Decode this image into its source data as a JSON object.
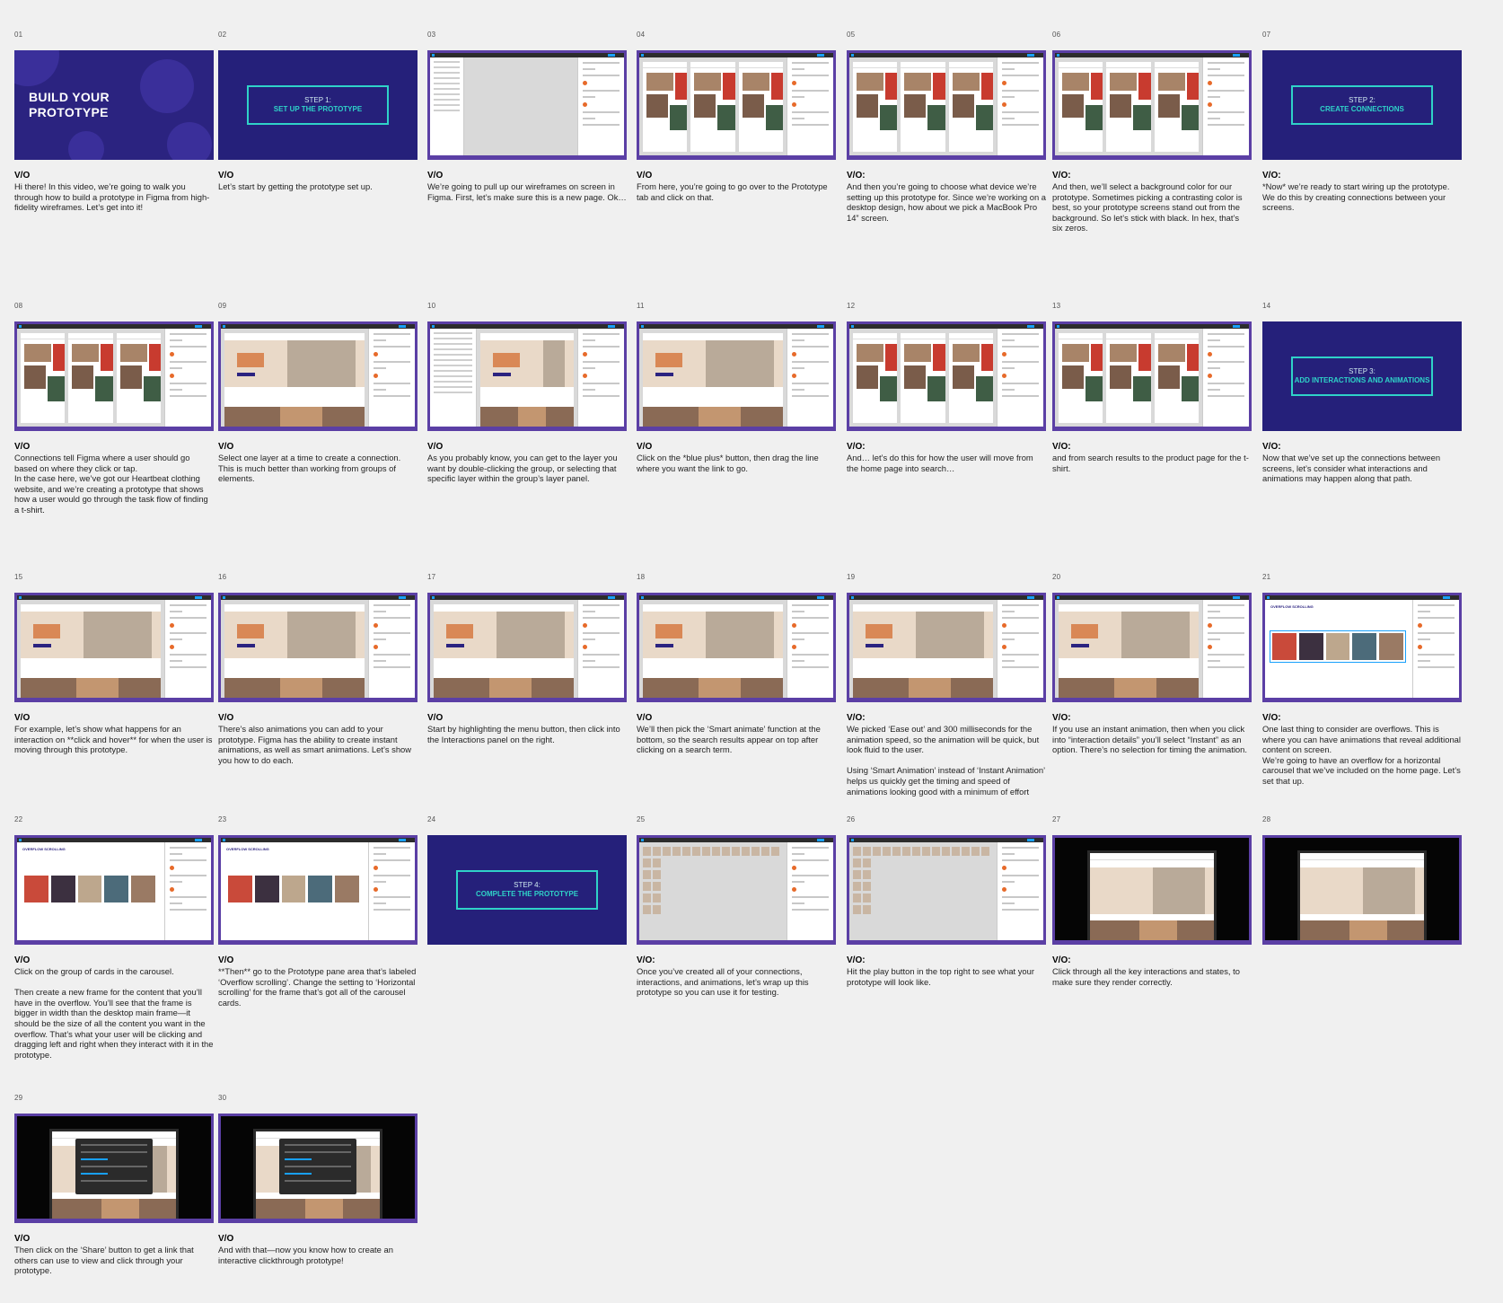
{
  "slides": [
    {
      "num": "01",
      "kind": "title",
      "title_l1": "BUILD YOUR",
      "title_l2": "PROTOTYPE",
      "label": "V/O",
      "desc": "Hi there! In this video, we’re going to walk you through how to build a prototype in Figma from high-fidelity wireframes. Let’s get into it!"
    },
    {
      "num": "02",
      "kind": "step",
      "step_l1": "STEP 1:",
      "step_l2": "SET UP THE PROTOTYPE",
      "label": "V/O",
      "desc": "Let’s start by getting the prototype set up."
    },
    {
      "num": "03",
      "kind": "ui-blank",
      "label": "V/O",
      "desc": "We’re going to pull up our wireframes on screen in Figma. First, let’s make sure this is a new page. Ok…"
    },
    {
      "num": "04",
      "kind": "ui-frames",
      "label": "V/O",
      "desc": "From here, you’re going to go over to the Prototype tab and click on that."
    },
    {
      "num": "05",
      "kind": "ui-frames",
      "label": "V/O:",
      "desc": "And then you’re going to choose what device we’re setting up this prototype for. Since we’re working on a desktop design, how about we pick a MacBook Pro 14” screen."
    },
    {
      "num": "06",
      "kind": "ui-frames",
      "label": "V/O:",
      "desc": "And then, we’ll select a background color for our prototype. Sometimes picking a contrasting color is best, so your prototype screens stand out from the background. So let’s stick with black. In hex, that’s six zeros."
    },
    {
      "num": "07",
      "kind": "step",
      "step_l1": "STEP 2:",
      "step_l2": "CREATE CONNECTIONS",
      "label": "V/O:",
      "desc": "*Now* we’re ready to start wiring up the prototype. We do this by creating connections between your screens."
    },
    {
      "num": "08",
      "kind": "ui-frames",
      "label": "V/O",
      "desc": "Connections tell Figma where a user should go based on where they click or tap.\nIn the case here, we’ve got our Heartbeat clothing website, and we’re creating a prototype that shows how a user would go through the task flow of finding a t-shirt."
    },
    {
      "num": "09",
      "kind": "ui-site",
      "label": "V/O",
      "desc": "Select one layer at a time to create a connection. This is much better than working from groups of elements."
    },
    {
      "num": "10",
      "kind": "ui-site-layers",
      "label": "V/O",
      "desc": "As you probably know, you can get to the layer you want by double-clicking the group, or selecting that specific layer within the group’s layer panel."
    },
    {
      "num": "11",
      "kind": "ui-site",
      "label": "V/O",
      "desc": "Click on the *blue plus* button, then drag the line where you want the link to go."
    },
    {
      "num": "12",
      "kind": "ui-frames",
      "label": "V/O:",
      "desc": "And… let’s do this for how the user will move from the home page into search…"
    },
    {
      "num": "13",
      "kind": "ui-frames",
      "label": "V/O:",
      "desc": "and from search results to the product page for the t-shirt."
    },
    {
      "num": "14",
      "kind": "step",
      "step_l1": "STEP 3:",
      "step_l2": "ADD INTERACTIONS AND ANIMATIONS",
      "label": "V/O:",
      "desc": "Now that we’ve set up the connections between screens, let’s consider what interactions and animations may happen along that path."
    },
    {
      "num": "15",
      "kind": "ui-site",
      "label": "V/O",
      "desc": "For example, let’s show what happens for an interaction on **click and hover** for when the user is moving through this prototype."
    },
    {
      "num": "16",
      "kind": "ui-site",
      "label": "V/O",
      "desc": "There’s also animations you can add to your prototype. Figma has the ability to create instant animations, as well as smart animations. Let’s show you how to do each."
    },
    {
      "num": "17",
      "kind": "ui-site",
      "label": "V/O",
      "desc": "Start by highlighting the menu button, then click into the Interactions panel on the right."
    },
    {
      "num": "18",
      "kind": "ui-site",
      "label": "V/O",
      "desc": "We’ll then pick the ‘Smart animate’ function at the bottom, so the search results appear on top after clicking on a search term."
    },
    {
      "num": "19",
      "kind": "ui-site",
      "label": "V/O:",
      "desc": "We picked ‘Ease out’ and 300 milliseconds for the animation speed, so the animation will be quick, but look fluid to the user.\n\nUsing ‘Smart Animation’ instead of ‘Instant Animation’ helps us quickly get the timing and speed of animations looking good with a minimum of effort"
    },
    {
      "num": "20",
      "kind": "ui-site",
      "label": "V/O:",
      "desc": "If you use an instant animation, then when you click into “interaction details” you’ll select “Instant” as an option. There’s no selection for timing the animation."
    },
    {
      "num": "21",
      "kind": "ui-carousel",
      "heading": "OVERFLOW SCROLLING",
      "label": "V/O:",
      "desc": "One last thing to consider are overflows. This is where you can have animations that reveal additional content on screen.\nWe’re going to have an overflow for a horizontal carousel that we’ve included on the home page. Let’s set that up."
    },
    {
      "num": "22",
      "kind": "ui-carousel",
      "heading": "OVERFLOW SCROLLING",
      "label": "V/O",
      "desc": "Click on the group of cards in the carousel.\n\nThen create a new frame for the content that you’ll have in the overflow. You’ll see that the frame is bigger in width than the desktop main frame—it should be the size of all the content you want in the overflow. That’s what your user will be clicking and dragging left and right when they interact with it in the prototype."
    },
    {
      "num": "23",
      "kind": "ui-carousel",
      "heading": "OVERFLOW SCROLLING",
      "label": "V/O",
      "desc": "**Then** go to the Prototype pane area that’s labeled ‘Overflow scrolling’. Change the setting to ‘Horizontal scrolling’ for the frame that’s got all of the carousel cards."
    },
    {
      "num": "24",
      "kind": "step",
      "step_l1": "STEP 4:",
      "step_l2": "COMPLETE THE PROTOTYPE",
      "label": "",
      "desc": ""
    },
    {
      "num": "25",
      "kind": "ui-grid",
      "label": "V/O:",
      "desc": "Once you’ve created all of your connections, interactions, and animations, let’s wrap up this prototype so you can use it for testing."
    },
    {
      "num": "26",
      "kind": "ui-grid",
      "label": "V/O:",
      "desc": "Hit the play button in the top right to see what your prototype will look like."
    },
    {
      "num": "27",
      "kind": "dark-laptop",
      "label": "V/O:",
      "desc": "Click through all the key interactions and states, to make sure they render correctly."
    },
    {
      "num": "28",
      "kind": "dark-laptop",
      "label": "",
      "desc": ""
    },
    {
      "num": "29",
      "kind": "dark-modal",
      "label": "V/O",
      "desc": "Then click on the ‘Share’ button to get a link that others can use to view and click through your prototype."
    },
    {
      "num": "30",
      "kind": "dark-modal",
      "label": "V/O",
      "desc": "And with that—now you know how to create an interactive clickthrough prototype!"
    }
  ],
  "colors": {
    "title_bg": "#2b2380",
    "accent_teal": "#2fd2c8",
    "frame_purple": "#5b3fa5",
    "figma_blue": "#18a0fb"
  }
}
